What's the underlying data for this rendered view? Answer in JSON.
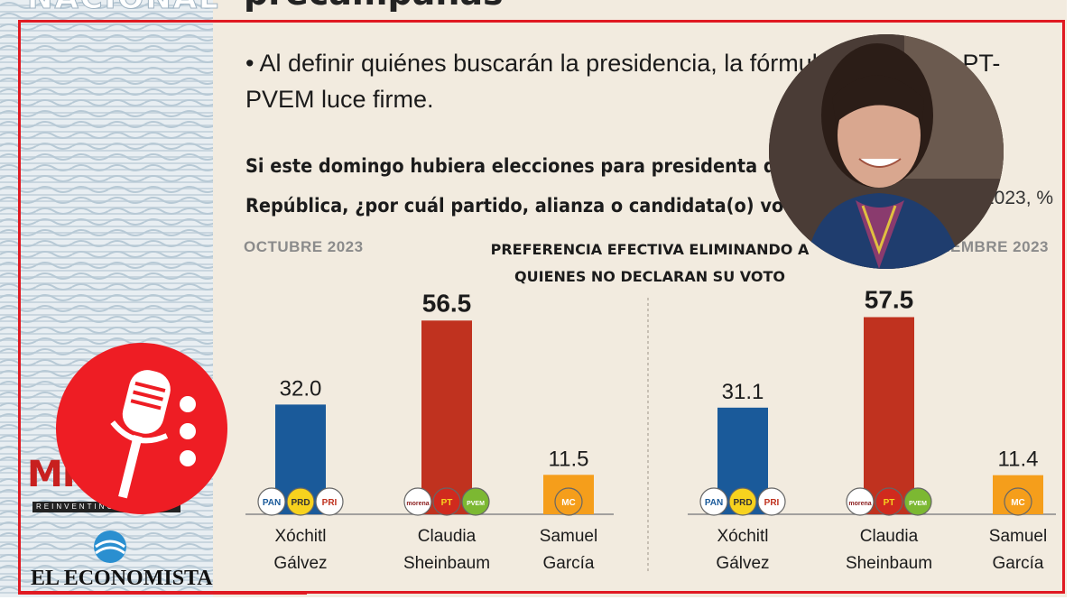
{
  "header": {
    "section_tag": "NACIONAL",
    "top_heading": "precampañas",
    "bullet": "• Al definir quiénes buscarán la presidencia, la fórmula de Morena-PT-PVEM luce firme.",
    "question_line1": "Si este domingo hubiera elecciones para presidenta de la",
    "question_line2": "República, ¿por cuál partido, alianza o candidata(o) votaría?",
    "question_suffix": "2023, %"
  },
  "branding": {
    "mil_logo": "MIL",
    "mil_sub": "REINVENTING",
    "economista": "EL ECONOMISTA",
    "colors": {
      "frame": "#e01a22",
      "mic_badge": "#ee1d24"
    },
    "icons": [
      "microphone-icon",
      "economista-logo-icon"
    ]
  },
  "chart_data": [
    {
      "type": "bar",
      "title": "PREFERENCIA EFECTIVA ELIMINANDO A QUIENES NO DECLARAN SU VOTO",
      "period": "OCTUBRE 2023",
      "categories": [
        "Xóchitl Gálvez",
        "Claudia Sheinbaum",
        "Samuel García"
      ],
      "category_lines": [
        [
          "Xóchitl",
          "Gálvez"
        ],
        [
          "Claudia",
          "Sheinbaum"
        ],
        [
          "Samuel",
          "García"
        ]
      ],
      "values": [
        32.0,
        56.5,
        11.5
      ],
      "value_labels": [
        "32.0",
        "56.5",
        "11.5"
      ],
      "colors": [
        "#1a5a9a",
        "#c0321f",
        "#f59e1b"
      ],
      "party_badges": [
        [
          "PAN",
          "PRD",
          "PRI"
        ],
        [
          "morena",
          "PT",
          "PVEM"
        ],
        [
          "MC"
        ]
      ],
      "ylim": [
        0,
        60
      ]
    },
    {
      "type": "bar",
      "title": "PREFERENCIA EFECTIVA ELIMINANDO A QUIENES NO DECLARAN SU VOTO",
      "period": "NOVIEMBRE 2023",
      "categories": [
        "Xóchitl Gálvez",
        "Claudia Sheinbaum",
        "Samuel García"
      ],
      "category_lines": [
        [
          "Xóchitl",
          "Gálvez"
        ],
        [
          "Claudia",
          "Sheinbaum"
        ],
        [
          "Samuel",
          "García"
        ]
      ],
      "values": [
        31.1,
        57.5,
        11.4
      ],
      "value_labels": [
        "31.1",
        "57.5",
        "11.4"
      ],
      "colors": [
        "#1a5a9a",
        "#c0321f",
        "#f59e1b"
      ],
      "party_badges": [
        [
          "PAN",
          "PRD",
          "PRI"
        ],
        [
          "morena",
          "PT",
          "PVEM"
        ],
        [
          "MC"
        ]
      ],
      "ylim": [
        0,
        60
      ]
    }
  ],
  "labels": {
    "subtitle_line1": "PREFERENCIA EFECTIVA ELIMINANDO A",
    "subtitle_line2": "QUIENES NO DECLARAN SU VOTO",
    "period_left": "OCTUBRE 2023",
    "period_right_visible": "VIEMBRE 2023"
  }
}
